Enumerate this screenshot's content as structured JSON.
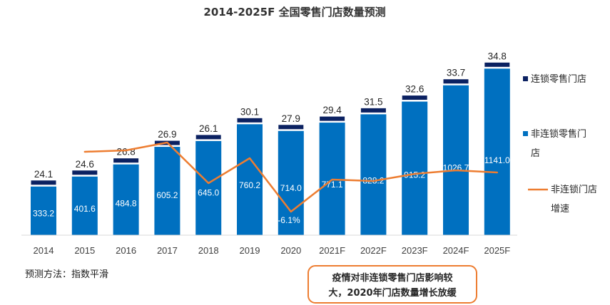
{
  "chart_data": {
    "type": "bar",
    "title": "2014-2025F  全国零售门店数量预测",
    "categories": [
      "2014",
      "2015",
      "2016",
      "2017",
      "2018",
      "2019",
      "2020",
      "2021F",
      "2022F",
      "2023F",
      "2024F",
      "2025F"
    ],
    "series": [
      {
        "name": "非连锁零售门店",
        "values": [
          333.2,
          401.6,
          484.8,
          605.2,
          645.0,
          760.2,
          714.0,
          771.1,
          828.2,
          915.2,
          1026.7,
          1141.0
        ],
        "color": "#0070c0"
      },
      {
        "name": "连锁零售门店",
        "values": [
          24.1,
          24.6,
          26.8,
          26.9,
          26.1,
          30.1,
          27.9,
          29.4,
          31.5,
          32.6,
          33.7,
          34.8
        ],
        "color": "#0b2161"
      },
      {
        "name": "非连锁门店增速",
        "type": "line",
        "values": [
          null,
          null,
          null,
          null,
          null,
          null,
          -6.1,
          null,
          null,
          null,
          null,
          null
        ],
        "color": "#ed7d31"
      }
    ],
    "stacked": true,
    "legend_position": "right",
    "grid": false,
    "annotations": [
      "预测方法：指数平滑",
      "疫情对非连锁零售门店影响较大，2020年门店数量增长放缓"
    ]
  },
  "legend": {
    "chain": "连锁零售门店",
    "nonchain_line1": "非连锁零售门",
    "nonchain_line2": "店",
    "growth_line1": "非连锁门店",
    "growth_line2": "增速"
  },
  "note": "预测方法：指数平滑",
  "callout": {
    "line1": "疫情对非连锁零售门店影响较",
    "line2": "大，2020年门店数量增长放缓"
  },
  "colors": {
    "nonchain": "#0070c0",
    "chain": "#0b2161",
    "growth": "#ed7d31",
    "callout_border": "#ed7d31"
  }
}
